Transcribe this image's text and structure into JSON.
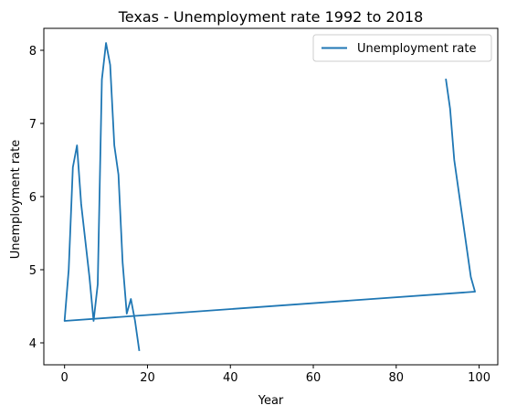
{
  "chart_data": {
    "type": "line",
    "title": "Texas - Unemployment rate 1992 to 2018",
    "xlabel": "Year",
    "ylabel": "Unemployment rate",
    "xlim": [
      -5,
      104.5
    ],
    "ylim": [
      3.7,
      8.3
    ],
    "xticks": [
      0,
      20,
      40,
      60,
      80,
      100
    ],
    "yticks": [
      4,
      5,
      6,
      7,
      8
    ],
    "grid": false,
    "legend_position": "top-right",
    "series": [
      {
        "name": "Unemployment rate",
        "color": "#1f77b4",
        "x": [
          92,
          93,
          94,
          95,
          96,
          97,
          98,
          99,
          0,
          1,
          2,
          3,
          4,
          5,
          6,
          7,
          8,
          9,
          10,
          11,
          12,
          13,
          14,
          15,
          16,
          17,
          18
        ],
        "y": [
          7.6,
          7.2,
          6.5,
          6.1,
          5.7,
          5.3,
          4.9,
          4.7,
          4.3,
          5.0,
          6.4,
          6.7,
          5.9,
          5.4,
          4.9,
          4.3,
          4.8,
          7.6,
          8.1,
          7.8,
          6.7,
          6.3,
          5.1,
          4.4,
          4.6,
          4.3,
          3.9
        ]
      }
    ]
  }
}
